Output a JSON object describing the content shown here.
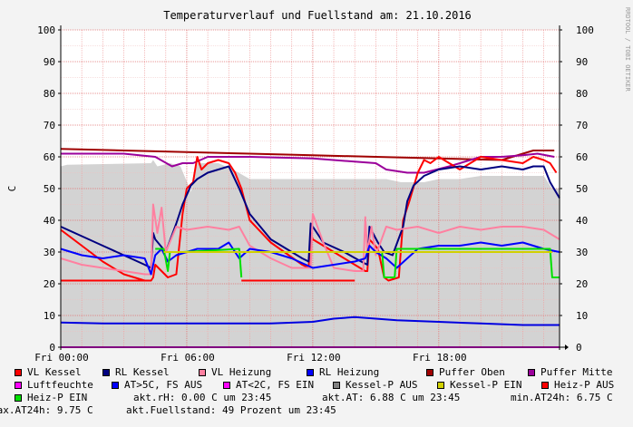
{
  "chart_data": {
    "type": "line",
    "title": "Temperaturverlauf und Fuellstand am: 21.10.2016",
    "ylabel": "C",
    "watermark": "RRDTOOL / TOBI OETIKER",
    "ylim": [
      0,
      100
    ],
    "xlim": [
      0,
      23.75
    ],
    "yticks": [
      0,
      10,
      20,
      30,
      40,
      50,
      60,
      70,
      80,
      90,
      100
    ],
    "yticks_right": [
      0,
      10,
      20,
      30,
      40,
      50,
      60,
      70,
      80,
      90,
      100
    ],
    "xticks": [
      {
        "x": 0,
        "label": "Fri 00:00"
      },
      {
        "x": 6,
        "label": "Fri 06:00"
      },
      {
        "x": 12,
        "label": "Fri 12:00"
      },
      {
        "x": 18,
        "label": "Fri 18:00"
      }
    ],
    "grid": true,
    "legend_position": "bottom",
    "series": [
      {
        "name": "Kessel-P AUS",
        "color": "#d3d3d3",
        "fill": true,
        "x": [
          0,
          0.3,
          4.3,
          4.4,
          4.6,
          5.2,
          5.7,
          6.2,
          6.5,
          7.5,
          8.2,
          9.0,
          15.5,
          16.2,
          17.3,
          18.0,
          18.5,
          19.0,
          20.0,
          21.0,
          22.0,
          23.0,
          23.4,
          23.75
        ],
        "values": [
          57,
          57.5,
          58,
          59,
          57,
          58,
          57,
          49,
          58,
          58,
          56,
          53,
          53,
          52,
          52,
          53,
          53,
          53,
          54,
          54,
          54,
          54,
          50,
          50
        ]
      },
      {
        "name": "Puffer Oben",
        "color": "#a00000",
        "x": [
          0,
          3,
          6,
          9,
          12,
          15,
          18,
          21,
          22.5,
          23.5
        ],
        "values": [
          62.5,
          62,
          61.5,
          61,
          60.5,
          60,
          59.5,
          59,
          62,
          62
        ]
      },
      {
        "name": "Puffer Mitte",
        "color": "#9b009b",
        "x": [
          0,
          3,
          4.5,
          5.3,
          5.8,
          6.3,
          7.0,
          9,
          12,
          15,
          15.5,
          16.5,
          17.3,
          18.5,
          19.5,
          20,
          21,
          22,
          22.7,
          23.5
        ],
        "values": [
          61,
          61,
          60,
          57,
          58,
          58,
          60,
          60,
          59.5,
          58,
          56,
          55,
          55,
          57,
          59,
          60,
          60,
          60.5,
          61,
          60
        ]
      },
      {
        "name": "VL Kessel",
        "color": "#ff0000",
        "x": [
          0,
          1,
          2,
          3,
          4,
          4.3,
          4.4,
          4.5,
          5.1,
          5.5,
          5.8,
          6.0,
          6.3,
          6.5,
          6.7,
          7.0,
          7.5,
          8.0,
          8.3,
          8.6,
          9.0,
          10,
          11.5,
          11.8,
          11.9,
          12.0,
          13.0,
          14.0,
          14.5,
          14.6,
          14.7,
          15.1,
          15.4,
          15.6,
          16.1,
          16.3,
          16.6,
          17.0,
          17.3,
          17.6,
          18.0,
          19.0,
          20.0,
          21.0,
          22.0,
          22.5,
          23.0,
          23.3,
          23.6
        ],
        "values": [
          37,
          32,
          27,
          23,
          21,
          21,
          22,
          26,
          22,
          23,
          42,
          50,
          52,
          60,
          56,
          58,
          59,
          58,
          55,
          50,
          40,
          33,
          26,
          25,
          36,
          34,
          30,
          26,
          24,
          24,
          34,
          31,
          22,
          21,
          22,
          40,
          46,
          55,
          59,
          58,
          60,
          56,
          60,
          59,
          58,
          60,
          59,
          58,
          55
        ]
      },
      {
        "name": "RL Kessel",
        "color": "#000080",
        "x": [
          0,
          1,
          2,
          3,
          4,
          4.3,
          4.4,
          4.5,
          5.0,
          5.5,
          5.8,
          6.2,
          6.5,
          7.0,
          7.5,
          8.0,
          8.5,
          9.0,
          10,
          11.5,
          11.8,
          11.9,
          12.5,
          13.5,
          14.3,
          14.6,
          14.7,
          15.1,
          15.4,
          15.8,
          16.3,
          16.5,
          16.8,
          17.3,
          18.0,
          19.0,
          20.0,
          21.0,
          22.0,
          22.5,
          23.0,
          23.3,
          23.75
        ],
        "values": [
          38,
          35,
          32,
          29,
          26,
          25,
          36,
          34,
          30,
          39,
          45,
          51,
          53,
          55,
          56,
          57,
          50,
          42,
          34,
          28,
          27,
          39,
          33,
          30,
          27,
          26,
          38,
          33,
          30,
          29,
          38,
          46,
          51,
          54,
          56,
          57,
          56,
          57,
          56,
          57,
          57,
          52,
          47
        ]
      },
      {
        "name": "VL Heizung",
        "color": "#ff80a0",
        "x": [
          0,
          1,
          2,
          3,
          4,
          4.3,
          4.4,
          4.6,
          4.8,
          5.0,
          5.5,
          6,
          7,
          8,
          8.5,
          9,
          10,
          11,
          11.9,
          12.0,
          12.5,
          13,
          14,
          14.4,
          14.5,
          14.6,
          14.8,
          15.0,
          15.5,
          16,
          17,
          18,
          19,
          20,
          21,
          22,
          23,
          23.75
        ],
        "values": [
          28,
          26,
          25,
          24,
          23,
          23,
          45,
          36,
          44,
          30,
          38,
          37,
          38,
          37,
          38,
          32,
          28,
          25,
          25,
          42,
          33,
          25,
          24,
          24,
          41,
          30,
          38,
          29,
          38,
          37,
          38,
          36,
          38,
          37,
          38,
          38,
          37,
          34
        ]
      },
      {
        "name": "RL Heizung",
        "color": "#0000ff",
        "x": [
          0,
          1,
          2,
          3,
          4,
          4.3,
          4.5,
          4.8,
          5.1,
          5.5,
          6.5,
          7.5,
          8.0,
          8.5,
          9.0,
          10,
          11,
          12,
          13,
          14,
          14.5,
          14.7,
          15,
          15.5,
          16,
          16.5,
          17,
          18,
          19,
          20,
          21,
          22,
          23,
          23.75
        ],
        "values": [
          31,
          29,
          28,
          29,
          28,
          23,
          29,
          31,
          27,
          29,
          31,
          31,
          33,
          28,
          31,
          30,
          28,
          25,
          26,
          27,
          28,
          32,
          30,
          28,
          25,
          28,
          31,
          32,
          32,
          33,
          32,
          33,
          31,
          30
        ]
      },
      {
        "name": "Heiz-P EIN",
        "color": "#00e000",
        "x": [
          0,
          4.4,
          4.5,
          4.9,
          5.1,
          5.2,
          5.8,
          8.5,
          8.6,
          14.7,
          14.8,
          15.3,
          15.4,
          15.9,
          16.0,
          18,
          21,
          23.3,
          23.4,
          23.75
        ],
        "values": [
          null,
          null,
          31,
          31,
          24,
          30,
          30,
          31,
          22,
          null,
          30,
          30,
          22,
          22,
          31,
          31,
          31,
          31,
          22,
          22
        ]
      },
      {
        "name": "Kessel-P EIN",
        "color": "#d0d000",
        "x": [
          4.9,
          8.6,
          14.8,
          23.4
        ],
        "values": [
          30,
          30,
          30,
          30
        ]
      },
      {
        "name": "Heiz-P AUS",
        "color": "#ff0000",
        "x": [
          0,
          4.3
        ],
        "values": [
          21,
          21
        ]
      },
      {
        "name": "Heiz-P AUS (2)",
        "color": "#ff0000",
        "x": [
          8.6,
          14.0
        ],
        "values": [
          21,
          21
        ]
      },
      {
        "name": "Luftfeuchte",
        "color": "#0000e0",
        "x": [
          0,
          2,
          4,
          6,
          8,
          10,
          12,
          13,
          14,
          15,
          16,
          18,
          20,
          22,
          23.75
        ],
        "values": [
          7.8,
          7.5,
          7.5,
          7.5,
          7.5,
          7.5,
          8.0,
          9.0,
          9.5,
          9.0,
          8.5,
          8.0,
          7.5,
          7.0,
          7.0
        ]
      }
    ],
    "legend": [
      {
        "label": "VL Kessel",
        "color": "#ff0000"
      },
      {
        "label": "RL Kessel",
        "color": "#000080"
      },
      {
        "label": "VL Heizung",
        "color": "#ff80a0"
      },
      {
        "label": "RL Heizung",
        "color": "#0000ff"
      },
      {
        "label": "Puffer Oben",
        "color": "#a00000"
      },
      {
        "label": "Puffer Mitte",
        "color": "#9b009b"
      },
      {
        "label": "Luftfeuchte",
        "color": "#ff00ff"
      },
      {
        "label": "AT>5C, FS AUS",
        "color": "#0000ff"
      },
      {
        "label": "AT<2C, FS EIN",
        "color": "#ff00ff"
      },
      {
        "label": "Kessel-P AUS",
        "color": "#808080"
      },
      {
        "label": "Kessel-P EIN",
        "color": "#d0d000"
      },
      {
        "label": "Heiz-P AUS",
        "color": "#ff0000"
      },
      {
        "label": "Heiz-P EIN",
        "color": "#00e000"
      }
    ],
    "stats": {
      "akt_rh": "akt.rH: 0.00 C um 23:45",
      "akt_at": "akt.AT: 6.88 C um 23:45",
      "min_at": "min.AT24h: 6.75 C",
      "max_at": "max.AT24h: 9.75 C",
      "akt_fuell": "akt.Fuellstand:   49 Prozent um 23:45"
    }
  }
}
